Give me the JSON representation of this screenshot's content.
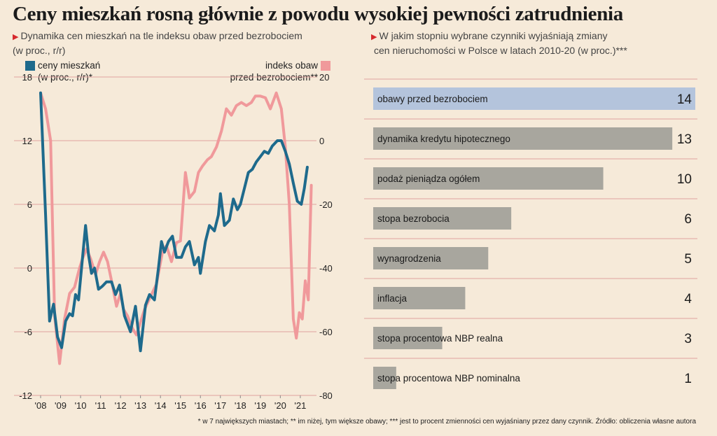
{
  "title": "Ceny mieszkań rosną głównie z powodu wysokiej pewności zatrudnienia",
  "left_panel": {
    "subtitle_line1": "Dynamika cen mieszkań na tle indeksu obaw przed bezrobociem",
    "subtitle_line2": "(w proc., r/r)",
    "legend_prices_line1": "ceny mieszkań",
    "legend_prices_line2": "(w proc., r/r)*",
    "legend_fear_line1": "indeks obaw",
    "legend_fear_line2": "przed bezrobociem**"
  },
  "right_panel": {
    "subtitle_line1": "W jakim stopniu wybrane czynniki wyjaśniają zmiany",
    "subtitle_line2": "cen nieruchomości w Polsce w latach 2010-20 (w proc.)***"
  },
  "footnote": "* w 7 największych miastach; ** im niżej, tym większe obawy; *** jest to procent zmienności cen wyjaśniany przez dany czynnik. Źródło: obliczenia własne autora",
  "colors": {
    "prices_line": "#1e6a8c",
    "fear_line": "#f0999b",
    "highlight_bar": "#b4c4dc",
    "bar": "#a8a69e",
    "grid": "#e0a2a0",
    "background": "#f6ead9"
  },
  "chart_data": [
    {
      "type": "line",
      "title": "Dynamika cen mieszkań na tle indeksu obaw przed bezrobociem",
      "xlabel": "",
      "x_tick_labels": [
        "'08",
        "'09",
        "'10",
        "'11",
        "'12",
        "'13",
        "'14",
        "'15",
        "'16",
        "'17",
        "'18",
        "'19",
        "'20",
        "'21"
      ],
      "x_range": [
        2008.0,
        2021.6
      ],
      "y_left": {
        "ticks": [
          18,
          12,
          6,
          0,
          -6,
          -12
        ],
        "range": [
          -12,
          18
        ]
      },
      "y_right": {
        "ticks": [
          20,
          0,
          -20,
          -40,
          -60,
          -80
        ],
        "range": [
          -80,
          20
        ]
      },
      "grid": true,
      "series": [
        {
          "name": "ceny mieszkań (w proc., r/r)*",
          "axis": "left",
          "color": "#1e6a8c",
          "points": [
            [
              2008.0,
              16.5
            ],
            [
              2008.25,
              5.0
            ],
            [
              2008.45,
              -5.0
            ],
            [
              2008.65,
              -3.4
            ],
            [
              2008.85,
              -6.5
            ],
            [
              2009.05,
              -7.5
            ],
            [
              2009.25,
              -5.0
            ],
            [
              2009.45,
              -4.3
            ],
            [
              2009.6,
              -4.5
            ],
            [
              2009.75,
              -2.5
            ],
            [
              2009.9,
              -3.0
            ],
            [
              2010.1,
              1.0
            ],
            [
              2010.25,
              4.0
            ],
            [
              2010.4,
              1.2
            ],
            [
              2010.55,
              -0.5
            ],
            [
              2010.7,
              0.0
            ],
            [
              2010.9,
              -2.0
            ],
            [
              2011.1,
              -1.7
            ],
            [
              2011.3,
              -1.3
            ],
            [
              2011.55,
              -1.3
            ],
            [
              2011.75,
              -2.5
            ],
            [
              2011.95,
              -1.6
            ],
            [
              2012.2,
              -4.5
            ],
            [
              2012.5,
              -6.0
            ],
            [
              2012.75,
              -3.6
            ],
            [
              2013.0,
              -7.8
            ],
            [
              2013.25,
              -3.5
            ],
            [
              2013.45,
              -2.5
            ],
            [
              2013.7,
              -3.0
            ],
            [
              2013.9,
              0.0
            ],
            [
              2014.05,
              2.5
            ],
            [
              2014.2,
              1.5
            ],
            [
              2014.4,
              2.5
            ],
            [
              2014.6,
              3.0
            ],
            [
              2014.8,
              1.0
            ],
            [
              2015.05,
              1.0
            ],
            [
              2015.25,
              2.0
            ],
            [
              2015.45,
              2.5
            ],
            [
              2015.7,
              0.3
            ],
            [
              2015.9,
              1.0
            ],
            [
              2016.0,
              -0.5
            ],
            [
              2016.25,
              2.5
            ],
            [
              2016.45,
              4.0
            ],
            [
              2016.7,
              3.5
            ],
            [
              2016.9,
              5.0
            ],
            [
              2017.0,
              7.0
            ],
            [
              2017.2,
              4.0
            ],
            [
              2017.45,
              4.5
            ],
            [
              2017.65,
              6.5
            ],
            [
              2017.85,
              5.5
            ],
            [
              2018.0,
              6.0
            ],
            [
              2018.2,
              7.5
            ],
            [
              2018.4,
              9.0
            ],
            [
              2018.6,
              9.3
            ],
            [
              2018.8,
              10.0
            ],
            [
              2019.0,
              10.5
            ],
            [
              2019.2,
              11.0
            ],
            [
              2019.4,
              10.8
            ],
            [
              2019.6,
              11.5
            ],
            [
              2019.85,
              12.0
            ],
            [
              2020.05,
              12.0
            ],
            [
              2020.25,
              11.0
            ],
            [
              2020.45,
              9.8
            ],
            [
              2020.65,
              8.0
            ],
            [
              2020.85,
              6.3
            ],
            [
              2021.05,
              6.0
            ],
            [
              2021.2,
              7.5
            ],
            [
              2021.35,
              9.5
            ]
          ]
        },
        {
          "name": "indeks obaw przed bezrobociem**",
          "axis": "right",
          "color": "#f0999b",
          "points": [
            [
              2008.0,
              15.0
            ],
            [
              2008.25,
              10.0
            ],
            [
              2008.5,
              0.0
            ],
            [
              2008.7,
              -55.0
            ],
            [
              2008.95,
              -70.0
            ],
            [
              2009.2,
              -56.0
            ],
            [
              2009.45,
              -48.0
            ],
            [
              2009.7,
              -46.0
            ],
            [
              2009.95,
              -40.0
            ],
            [
              2010.1,
              -37.0
            ],
            [
              2010.3,
              -34.0
            ],
            [
              2010.5,
              -37.0
            ],
            [
              2010.75,
              -42.0
            ],
            [
              2010.95,
              -38.0
            ],
            [
              2011.15,
              -35.0
            ],
            [
              2011.35,
              -38.0
            ],
            [
              2011.55,
              -44.0
            ],
            [
              2011.8,
              -52.0
            ],
            [
              2012.0,
              -48.0
            ],
            [
              2012.15,
              -53.0
            ],
            [
              2012.35,
              -55.0
            ],
            [
              2012.6,
              -59.0
            ],
            [
              2012.8,
              -61.0
            ],
            [
              2013.0,
              -57.0
            ],
            [
              2013.2,
              -53.0
            ],
            [
              2013.5,
              -49.0
            ],
            [
              2013.8,
              -45.0
            ],
            [
              2014.1,
              -35.0
            ],
            [
              2014.3,
              -33.0
            ],
            [
              2014.55,
              -38.0
            ],
            [
              2014.8,
              -32.0
            ],
            [
              2015.0,
              -31.5
            ],
            [
              2015.25,
              -10.0
            ],
            [
              2015.45,
              -18.0
            ],
            [
              2015.7,
              -16.0
            ],
            [
              2015.9,
              -10.0
            ],
            [
              2016.1,
              -8.0
            ],
            [
              2016.35,
              -6.0
            ],
            [
              2016.55,
              -5.0
            ],
            [
              2016.8,
              -2.0
            ],
            [
              2017.05,
              3.0
            ],
            [
              2017.3,
              10.0
            ],
            [
              2017.55,
              8.0
            ],
            [
              2017.8,
              11.0
            ],
            [
              2018.05,
              12.0
            ],
            [
              2018.3,
              11.0
            ],
            [
              2018.55,
              12.0
            ],
            [
              2018.75,
              14.0
            ],
            [
              2019.0,
              14.0
            ],
            [
              2019.25,
              13.5
            ],
            [
              2019.5,
              10.0
            ],
            [
              2019.8,
              15.0
            ],
            [
              2020.05,
              10.0
            ],
            [
              2020.25,
              -2.0
            ],
            [
              2020.45,
              -20.0
            ],
            [
              2020.65,
              -56.0
            ],
            [
              2020.8,
              -62.0
            ],
            [
              2020.95,
              -54.0
            ],
            [
              2021.1,
              -56.0
            ],
            [
              2021.25,
              -44.0
            ],
            [
              2021.4,
              -50.0
            ],
            [
              2021.55,
              -14.0
            ]
          ]
        }
      ]
    },
    {
      "type": "bar",
      "orientation": "horizontal",
      "title": "W jakim stopniu wybrane czynniki wyjaśniają zmiany cen nieruchomości w Polsce w latach 2010-20 (w proc.)***",
      "categories": [
        "obawy przed bezrobociem",
        "dynamika kredytu hipotecznego",
        "podaż pieniądza ogółem",
        "stopa bezrobocia",
        "wynagrodzenia",
        "inflacja",
        "stopa procentowa NBP realna",
        "stopa procentowa NBP nominalna"
      ],
      "values": [
        14,
        13,
        10,
        6,
        5,
        4,
        3,
        1
      ],
      "highlighted": [
        "obawy przed bezrobociem"
      ],
      "xlim": [
        0,
        14
      ]
    }
  ]
}
